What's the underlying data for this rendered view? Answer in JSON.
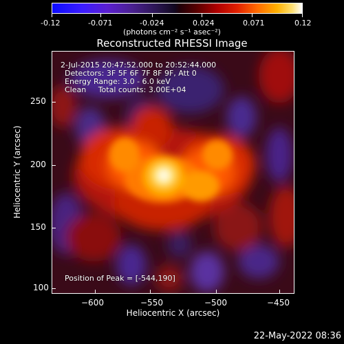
{
  "colorbar": {
    "ticks": [
      "-0.12",
      "-0.071",
      "-0.024",
      "0.024",
      "0.071",
      "0.12"
    ],
    "units": "(photons cm⁻² s⁻¹ asec⁻²)"
  },
  "title": "Reconstructed RHESSI Image",
  "annotations": {
    "time_range": "2-Jul-2015 20:47:52.000 to 20:52:44.000",
    "detectors": "Detectors: 3F 5F 6F 7F 8F 9F, Att 0",
    "energy": "Energy Range: 3.0 - 6.0 keV",
    "clean": "Clean     Total counts: 3.00E+04",
    "peak": "Position of Peak = [-544,190]"
  },
  "x_axis": {
    "title": "Heliocentric X (arcsec)",
    "ticks": [
      "−600",
      "−550",
      "−500",
      "−450"
    ]
  },
  "y_axis": {
    "title": "Heliocentric Y (arcsec)",
    "ticks": [
      "100",
      "150",
      "200",
      "250"
    ]
  },
  "timestamp": "22-May-2022 08:36",
  "colors": {
    "background": "#000000",
    "text": "#ffffff"
  }
}
